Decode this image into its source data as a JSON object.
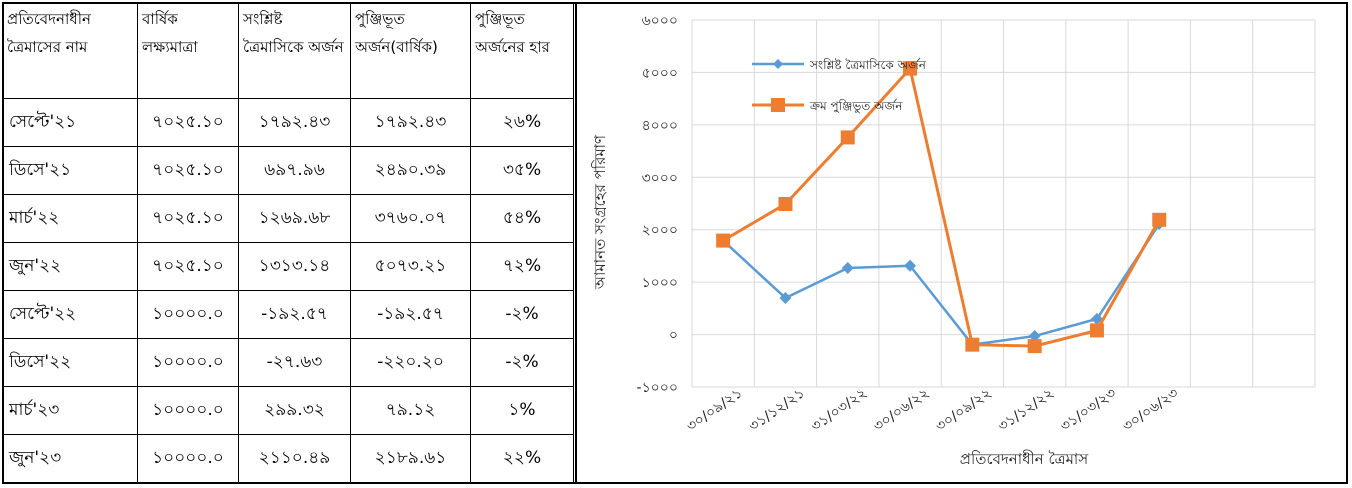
{
  "table": {
    "headers": [
      "প্রতিবেদনাধীন ত্রৈমাসের নাম",
      "বার্ষিক লক্ষ্যমাত্রা",
      "সংশ্লিষ্ট ত্রৈমাসিকে অর্জন",
      "পুঞ্জিভূত অর্জন(বার্ষিক)",
      "পুঞ্জিভূত অর্জনের হার"
    ],
    "rows": [
      [
        "সেপ্টে'২১",
        "৭০২৫.১০",
        "১৭৯২.৪৩",
        "১৭৯২.৪৩",
        "২৬%"
      ],
      [
        "ডিসে'২১",
        "৭০২৫.১০",
        "৬৯৭.৯৬",
        "২৪৯০.৩৯",
        "৩৫%"
      ],
      [
        "মার্চ'২২",
        "৭০২৫.১০",
        "১২৬৯.৬৮",
        "৩৭৬০.০৭",
        "৫৪%"
      ],
      [
        "জুন'২২",
        "৭০২৫.১০",
        "১৩১৩.১৪",
        "৫০৭৩.২১",
        "৭২%"
      ],
      [
        "সেপ্টে'২২",
        "১০০০০.০",
        "-১৯২.৫৭",
        "-১৯২.৫৭",
        "-২%"
      ],
      [
        "ডিসে'২২",
        "১০০০০.০",
        "-২৭.৬৩",
        "-২২০.২০",
        "-২%"
      ],
      [
        "মার্চ'২৩",
        "১০০০০.০",
        "২৯৯.৩২",
        "৭৯.১২",
        "১%"
      ],
      [
        "জুন'২৩",
        "১০০০০.০",
        "২১১০.৪৯",
        "২১৮৯.৬১",
        "২২%"
      ]
    ]
  },
  "chart_data": {
    "type": "line",
    "x": [
      "৩০/০৯/২১",
      "৩১/১২/২১",
      "৩১/০৩/২২",
      "৩০/০৬/২২",
      "৩০/০৯/২২",
      "৩১/১২/২২",
      "৩১/০৩/২৩",
      "৩০/০৬/২৩"
    ],
    "series": [
      {
        "name": "সংশ্লিষ্ট ত্রৈমাসিকে অর্জন",
        "color": "#5b9bd5",
        "marker": "diamond",
        "values": [
          1792.43,
          697.96,
          1269.68,
          1313.14,
          -192.57,
          -27.63,
          299.32,
          2110.49
        ]
      },
      {
        "name": "ক্রম পুঞ্জিভুত অর্জন",
        "color": "#ed7d31",
        "marker": "square",
        "values": [
          1792.43,
          2490.39,
          3760.07,
          5073.21,
          -192.57,
          -220.2,
          79.12,
          2189.61
        ]
      }
    ],
    "ylim": [
      -1000,
      6000
    ],
    "ytick_values": [
      -1000,
      0,
      1000,
      2000,
      3000,
      4000,
      5000,
      6000
    ],
    "ytick_labels": [
      "-১০০০",
      "০",
      "১০০০",
      "২০০০",
      "৩০০০",
      "৪০০০",
      "৫০০০",
      "৬০০০"
    ],
    "xlabel": "প্রতিবেদনাধীন ত্রৈমাস",
    "ylabel": "আমানত সংগ্রহের পরিমাণ",
    "grid": true,
    "legend_position": "top-left"
  }
}
